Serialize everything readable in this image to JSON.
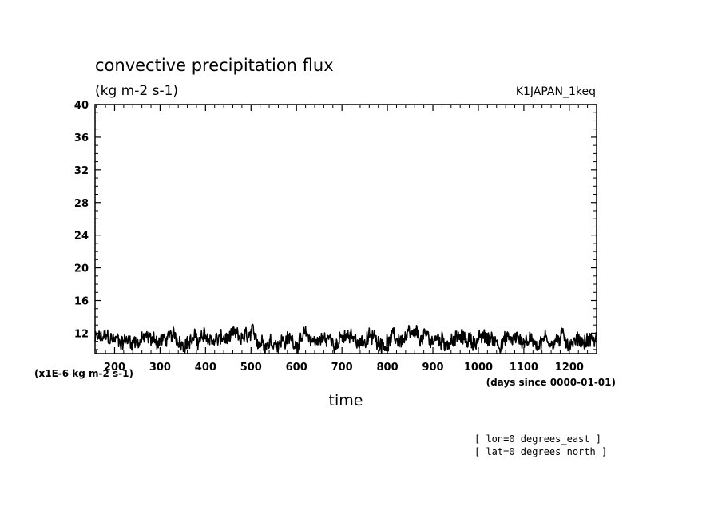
{
  "chart_data": {
    "type": "line",
    "title": "convective precipitation flux",
    "units_label": "(kg m-2 s-1)",
    "experiment": "K1JAPAN_1keq",
    "xlabel": "time",
    "x_units": "(days since 0000-01-01)",
    "y_scale_note": "(x1E-6 kg m-2 s-1)",
    "xlim": [
      157,
      1260
    ],
    "ylim": [
      9.5,
      40
    ],
    "x_ticks": [
      "200",
      "300",
      "400",
      "500",
      "600",
      "700",
      "800",
      "900",
      "1000",
      "1100",
      "1200"
    ],
    "y_ticks": [
      "12",
      "16",
      "20",
      "24",
      "28",
      "32",
      "36",
      "40"
    ],
    "series": [
      {
        "color": "#000000",
        "mean": 11.2,
        "amplitude": 1.1,
        "min": 9.5,
        "max": 13.6
      }
    ],
    "grid": false,
    "legend": "none"
  },
  "footnotes": {
    "lon": "[ lon=0 degrees_east ]",
    "lat": "[ lat=0 degrees_north ]"
  }
}
